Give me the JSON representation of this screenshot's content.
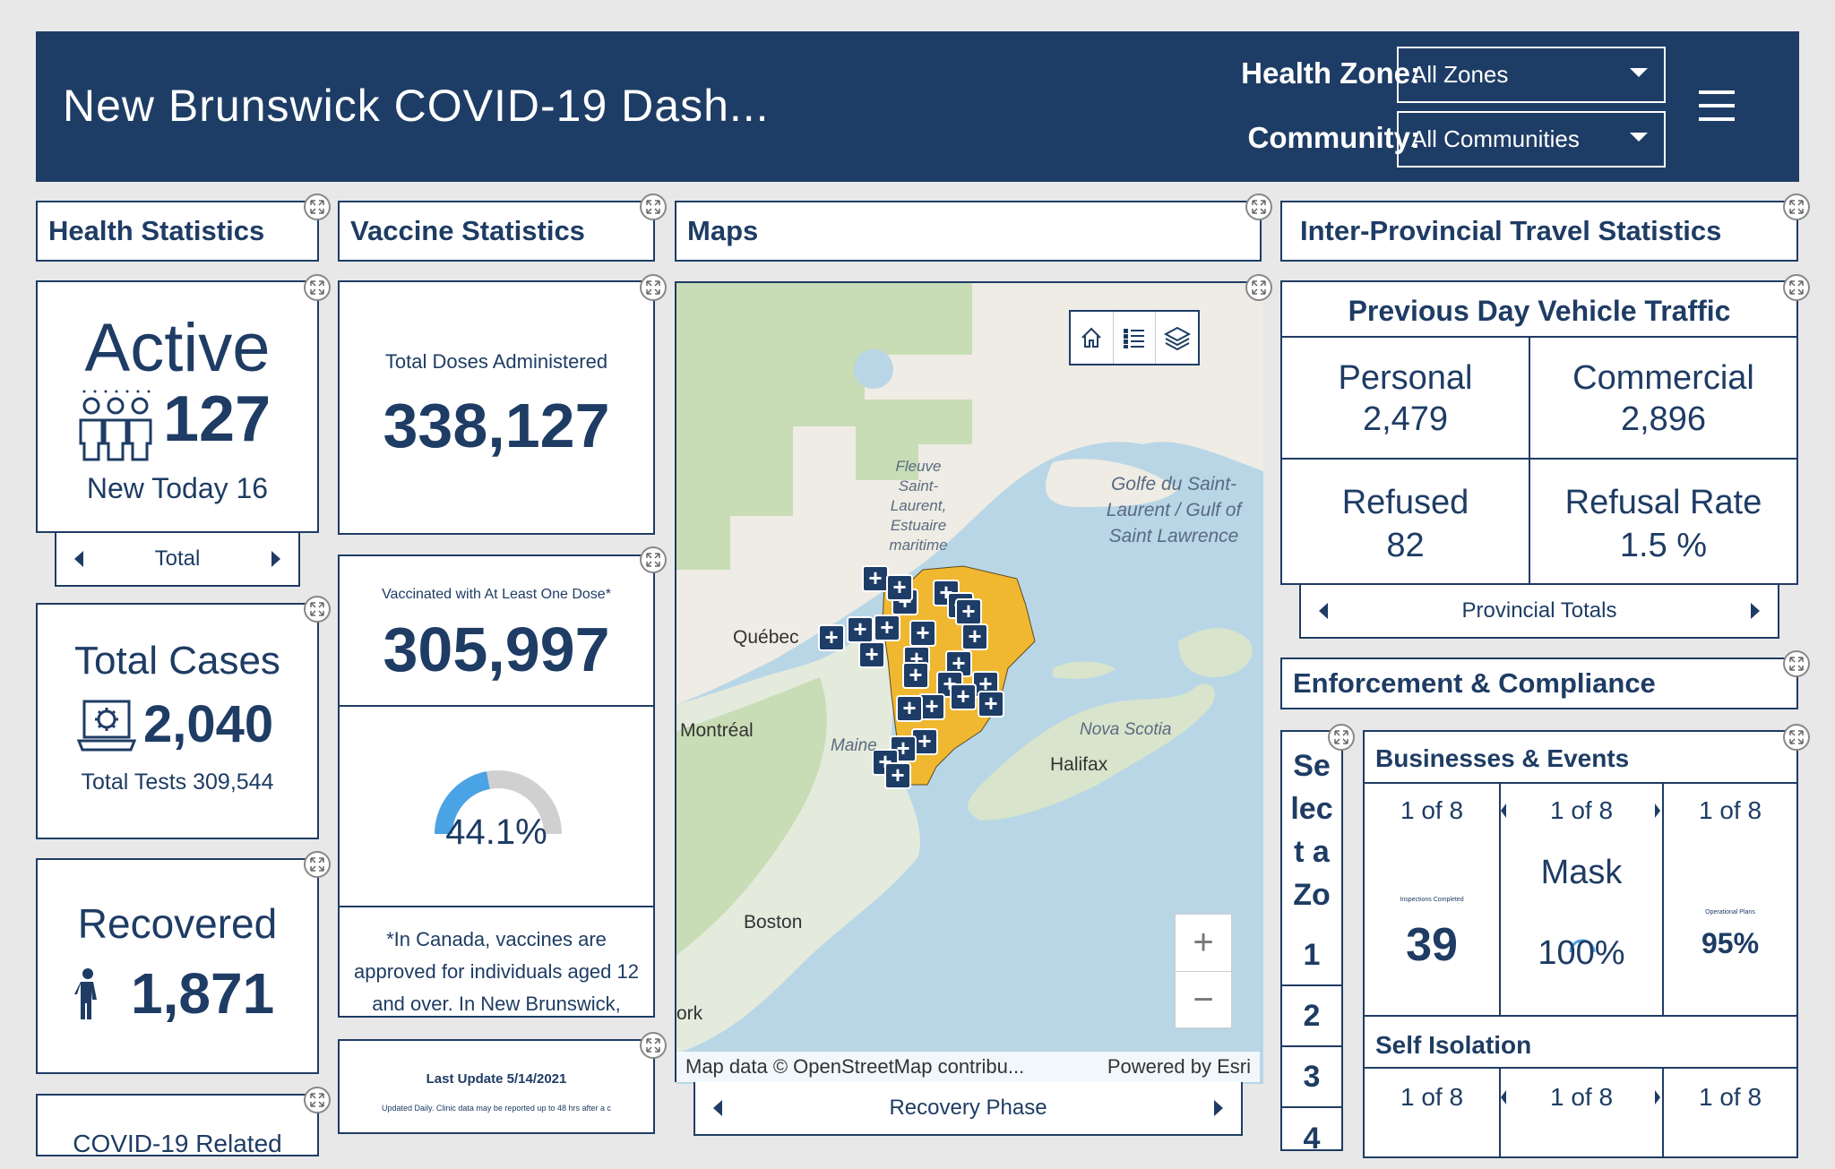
{
  "header": {
    "title": "New Brunswick COVID-19 Dash...",
    "health_zone_label": "Health Zone:",
    "health_zone_value": "All Zones",
    "community_label": "Community:",
    "community_value": "All Communities"
  },
  "sections": {
    "health": "Health Statistics",
    "vaccine": "Vaccine Statistics",
    "maps": "Maps",
    "travel": "Inter-Provincial Travel Statistics",
    "enforcement": "Enforcement & Compliance"
  },
  "active": {
    "title": "Active",
    "value": "127",
    "new_today": "New Today 16",
    "nav_label": "Total"
  },
  "total_cases": {
    "title": "Total Cases",
    "value": "2,040",
    "tests": "Total Tests 309,544"
  },
  "recovered": {
    "title": "Recovered",
    "value": "1,871"
  },
  "covid_related": {
    "title": "COVID-19 Related"
  },
  "vaccine": {
    "doses_label": "Total Doses Administered",
    "doses_value": "338,127",
    "one_dose_label": "Vaccinated with At Least One Dose*",
    "one_dose_value": "305,997",
    "gauge_label": "44.1%",
    "gauge_fraction": 0.441,
    "note": "*In Canada, vaccines are approved for individuals aged 12 and over.  In New Brunswick,",
    "last_update": "Last Update 5/14/2021",
    "update_note": "Updated Daily. Clinic data may be reported up to 48 hrs after a c"
  },
  "map": {
    "labels": {
      "fleuve": "Fleuve Saint-Laurent, Estuaire maritime",
      "golfe": "Golfe du Saint-Laurent / Gulf of Saint Lawrence",
      "quebec": "Québec",
      "montreal": "Montréal",
      "maine": "Maine",
      "nova_scotia": "Nova Scotia",
      "halifax": "Halifax",
      "boston": "Boston",
      "york": "ork"
    },
    "attribution": "Map data © OpenStreetMap contribu...",
    "powered": "Powered by Esri",
    "nav_label": "Recovery Phase",
    "colors": {
      "water": "#b8d6e6",
      "land": "#eeece4",
      "forest": "#c8ddb6",
      "province": "#f0b830",
      "marker": "#1e3d66"
    }
  },
  "traffic": {
    "title": "Previous Day Vehicle Traffic",
    "personal_label": "Personal",
    "personal_value": "2,479",
    "commercial_label": "Commercial",
    "commercial_value": "2,896",
    "refused_label": "Refused",
    "refused_value": "82",
    "rate_label": "Refusal Rate",
    "rate_value": "1.5 %",
    "nav_label": "Provincial Totals"
  },
  "zone_selector": {
    "text": [
      "Se",
      "lec",
      "t a",
      "Zo"
    ],
    "items": [
      "1",
      "2",
      "3",
      "4"
    ]
  },
  "businesses": {
    "title": "Businesses & Events",
    "col1_page": "1 of 8",
    "col1_small": "Inspections Completed",
    "col1_value": "39",
    "col2_page": "1 of 8",
    "col2_label": "Mask",
    "col2_value": "100%",
    "col3_page": "1 of 8",
    "col3_small": "Operational Plans",
    "col3_value": "95%"
  },
  "self_isolation": {
    "title": "Self Isolation",
    "col1_page": "1 of 8",
    "col2_page": "1 of 8",
    "col3_page": "1 of 8"
  }
}
